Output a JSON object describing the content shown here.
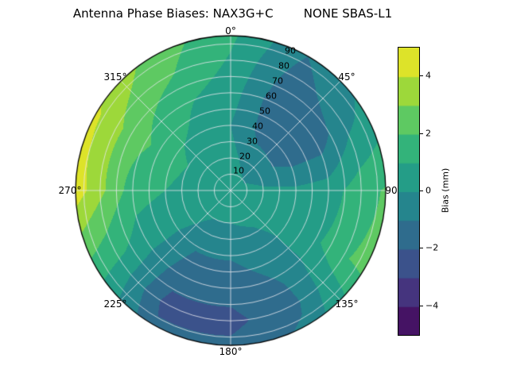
{
  "title": "Antenna Phase Biases: NAX3G+C        NONE SBAS-L1",
  "chart_data": {
    "type": "heatmap",
    "projection": "polar",
    "description": "Filled polar contour (sky plot) of antenna phase biases, azimuth clockwise from top, discrete viridis bands",
    "theta_labels": [
      "0°",
      "45°",
      "90",
      "135°",
      "180°",
      "225°",
      "270°",
      "315°"
    ],
    "theta_zero": "top",
    "theta_direction": "clockwise",
    "r_ticks": [
      10,
      20,
      30,
      40,
      50,
      60,
      70,
      80,
      90
    ],
    "r_tick_labels": [
      "10",
      "20",
      "30",
      "40",
      "50",
      "60",
      "70",
      "80",
      "90"
    ],
    "r_max": 95,
    "r_label_azimuth_deg": 23,
    "grid_color": "#e8e8ee",
    "colorbar": {
      "label": "Bias (mm)",
      "ticks": [
        4,
        2,
        0,
        -2,
        -4
      ],
      "tick_labels": [
        "4",
        "2",
        "0",
        "−2",
        "−4"
      ],
      "vmin": -5,
      "vmax": 5,
      "n_bands": 10,
      "colormap": "viridis"
    },
    "grid": {
      "azimuth_deg": [
        0,
        30,
        60,
        90,
        120,
        150,
        180,
        210,
        240,
        270,
        300,
        330,
        360
      ],
      "radius": [
        0,
        20,
        40,
        60,
        80,
        95
      ],
      "bias_mm": [
        [
          0.5,
          0.5,
          0.5,
          0.5,
          0.5,
          0.5,
          0.5,
          0.5,
          0.5,
          0.5,
          0.5,
          0.5,
          0.5
        ],
        [
          0.3,
          -0.3,
          -0.6,
          0.2,
          0.4,
          0.2,
          0.0,
          0.0,
          0.4,
          0.8,
          0.8,
          0.5,
          0.3
        ],
        [
          0.0,
          -1.4,
          -1.5,
          0.2,
          0.5,
          -0.5,
          -0.9,
          -0.9,
          0.3,
          1.0,
          1.2,
          0.8,
          0.0
        ],
        [
          0.5,
          -1.8,
          -1.6,
          0.5,
          0.8,
          -0.9,
          -1.6,
          -1.6,
          0.5,
          1.5,
          2.2,
          1.2,
          0.5
        ],
        [
          0.9,
          -1.4,
          -0.3,
          1.6,
          1.9,
          -1.2,
          -2.3,
          -2.3,
          1.2,
          3.3,
          3.2,
          2.2,
          0.9
        ],
        [
          1.2,
          -1.0,
          0.3,
          2.1,
          2.3,
          -0.8,
          -1.8,
          -1.8,
          1.6,
          4.6,
          4.2,
          2.6,
          1.2
        ]
      ]
    }
  }
}
